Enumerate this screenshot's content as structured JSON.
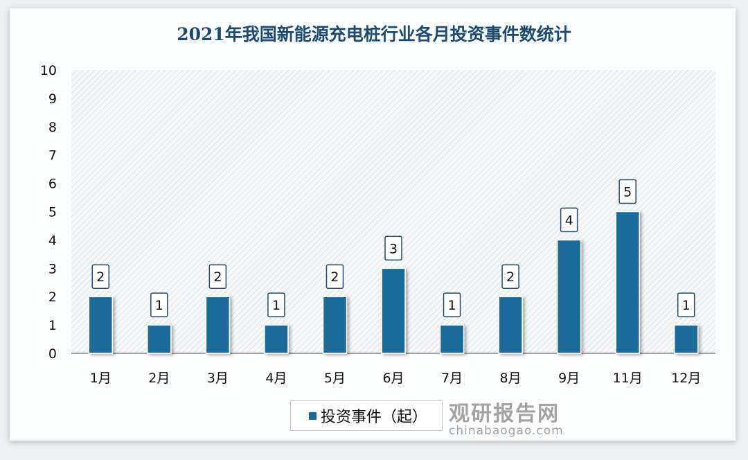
{
  "chart_data": {
    "type": "bar",
    "title": "2021年我国新能源充电桩行业各月投资事件数统计",
    "categories": [
      "1月",
      "2月",
      "3月",
      "4月",
      "5月",
      "6月",
      "7月",
      "8月",
      "9月",
      "11月",
      "12月"
    ],
    "series": [
      {
        "name": "投资事件（起）",
        "values": [
          2,
          1,
          2,
          1,
          2,
          3,
          1,
          2,
          4,
          5,
          1
        ]
      }
    ],
    "ylim": [
      0,
      10
    ],
    "yticks": [
      0,
      1,
      2,
      3,
      4,
      5,
      6,
      7,
      8,
      9,
      10
    ],
    "xlabel": "",
    "ylabel": "",
    "grid": false,
    "legend_position": "bottom",
    "data_labels": true,
    "colors": {
      "bar": "#1d6b9a",
      "title": "#1c4a72"
    }
  },
  "watermark": {
    "name": "观研报告网",
    "url": "chinabaogao.com"
  }
}
